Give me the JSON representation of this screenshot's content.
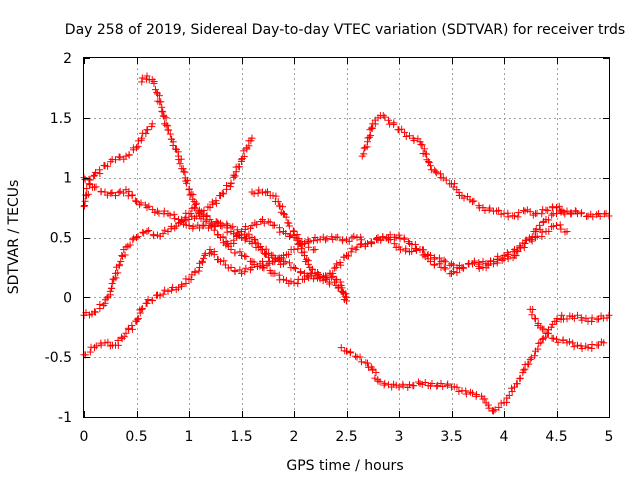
{
  "chart_data": {
    "type": "scatter",
    "title": "Day 258 of 2019, Sidereal Day-to-day VTEC variation (SDTVAR) for receiver trds",
    "xlabel": "GPS time / hours",
    "ylabel": "SDTVAR / TECUs",
    "xlim": [
      0,
      5
    ],
    "ylim": [
      -1,
      2
    ],
    "x_ticks": [
      "0",
      "0.5",
      "1",
      "1.5",
      "2",
      "2.5",
      "3",
      "3.5",
      "4",
      "4.5",
      "5"
    ],
    "y_ticks": [
      "2",
      "1.5",
      "1",
      "0.5",
      "0",
      "-0.5",
      "-1"
    ],
    "grid": true,
    "marker": "plus",
    "marker_color": "#ff0000",
    "series": [
      {
        "points": [
          [
            0.0,
            0.76
          ],
          [
            0.05,
            0.95
          ],
          [
            0.1,
            1.02
          ],
          [
            0.2,
            1.1
          ],
          [
            0.3,
            1.15
          ],
          [
            0.4,
            1.18
          ],
          [
            0.5,
            1.25
          ],
          [
            0.55,
            1.33
          ],
          [
            0.6,
            1.4
          ],
          [
            0.65,
            1.45
          ]
        ]
      },
      {
        "points": [
          [
            0.0,
            -0.15
          ],
          [
            0.1,
            -0.12
          ],
          [
            0.2,
            -0.05
          ],
          [
            0.25,
            0.05
          ],
          [
            0.3,
            0.2
          ],
          [
            0.35,
            0.3
          ],
          [
            0.4,
            0.42
          ],
          [
            0.5,
            0.5
          ],
          [
            0.6,
            0.55
          ],
          [
            0.7,
            0.52
          ],
          [
            0.8,
            0.55
          ],
          [
            0.9,
            0.62
          ],
          [
            1.0,
            0.7
          ],
          [
            1.05,
            0.75
          ],
          [
            1.1,
            0.68
          ],
          [
            1.2,
            0.62
          ],
          [
            1.3,
            0.5
          ],
          [
            1.4,
            0.4
          ],
          [
            1.5,
            0.35
          ],
          [
            1.6,
            0.3
          ],
          [
            1.7,
            0.25
          ],
          [
            1.8,
            0.3
          ],
          [
            1.9,
            0.35
          ],
          [
            2.0,
            0.4
          ],
          [
            2.1,
            0.45
          ],
          [
            2.2,
            0.5
          ],
          [
            2.3,
            0.48
          ],
          [
            2.4,
            0.5
          ],
          [
            2.5,
            0.48
          ],
          [
            2.6,
            0.5
          ],
          [
            2.7,
            0.45
          ],
          [
            2.8,
            0.48
          ],
          [
            2.9,
            0.5
          ],
          [
            3.0,
            0.52
          ],
          [
            3.1,
            0.45
          ],
          [
            3.2,
            0.4
          ],
          [
            3.3,
            0.35
          ],
          [
            3.4,
            0.3
          ],
          [
            3.5,
            0.28
          ],
          [
            3.6,
            0.25
          ],
          [
            3.7,
            0.28
          ],
          [
            3.8,
            0.25
          ],
          [
            3.9,
            0.3
          ],
          [
            4.0,
            0.35
          ],
          [
            4.1,
            0.4
          ],
          [
            4.2,
            0.45
          ],
          [
            4.3,
            0.5
          ],
          [
            4.4,
            0.55
          ],
          [
            4.5,
            0.6
          ],
          [
            4.6,
            0.55
          ]
        ]
      },
      {
        "points": [
          [
            0.0,
            1.0
          ],
          [
            0.1,
            0.92
          ],
          [
            0.2,
            0.88
          ],
          [
            0.3,
            0.85
          ],
          [
            0.4,
            0.9
          ],
          [
            0.5,
            0.8
          ],
          [
            0.6,
            0.75
          ],
          [
            0.7,
            0.72
          ],
          [
            0.8,
            0.7
          ],
          [
            0.9,
            0.65
          ],
          [
            1.0,
            0.6
          ],
          [
            1.1,
            0.58
          ],
          [
            1.2,
            0.6
          ],
          [
            1.3,
            0.62
          ],
          [
            1.4,
            0.58
          ],
          [
            1.5,
            0.55
          ],
          [
            1.6,
            0.5
          ],
          [
            1.7,
            0.4
          ],
          [
            1.8,
            0.35
          ],
          [
            1.9,
            0.3
          ],
          [
            2.0,
            0.25
          ],
          [
            2.1,
            0.2
          ],
          [
            2.2,
            0.18
          ],
          [
            2.3,
            0.15
          ],
          [
            2.4,
            0.1
          ],
          [
            2.45,
            0.05
          ],
          [
            2.5,
            0.0
          ]
        ]
      },
      {
        "points": [
          [
            0.0,
            -0.48
          ],
          [
            0.1,
            -0.42
          ],
          [
            0.2,
            -0.38
          ],
          [
            0.3,
            -0.4
          ],
          [
            0.4,
            -0.3
          ],
          [
            0.5,
            -0.2
          ],
          [
            0.55,
            -0.1
          ],
          [
            0.6,
            -0.05
          ],
          [
            0.7,
            0.02
          ],
          [
            0.8,
            0.05
          ],
          [
            0.9,
            0.08
          ],
          [
            1.0,
            0.15
          ],
          [
            1.1,
            0.25
          ],
          [
            1.15,
            0.35
          ],
          [
            1.2,
            0.4
          ],
          [
            1.3,
            0.3
          ],
          [
            1.4,
            0.25
          ],
          [
            1.5,
            0.2
          ],
          [
            1.6,
            0.25
          ],
          [
            1.7,
            0.3
          ],
          [
            1.8,
            0.2
          ],
          [
            1.9,
            0.15
          ],
          [
            2.0,
            0.12
          ],
          [
            2.1,
            0.15
          ],
          [
            2.2,
            0.18
          ],
          [
            2.3,
            0.15
          ],
          [
            2.4,
            0.25
          ],
          [
            2.5,
            0.35
          ],
          [
            2.6,
            0.42
          ],
          [
            2.7,
            0.45
          ],
          [
            2.8,
            0.5
          ],
          [
            2.9,
            0.48
          ],
          [
            3.0,
            0.42
          ],
          [
            3.1,
            0.38
          ],
          [
            3.2,
            0.4
          ],
          [
            3.3,
            0.3
          ],
          [
            3.4,
            0.25
          ],
          [
            3.5,
            0.2
          ],
          [
            3.6,
            0.25
          ],
          [
            3.7,
            0.28
          ],
          [
            3.8,
            0.3
          ],
          [
            3.9,
            0.28
          ],
          [
            4.0,
            0.32
          ],
          [
            4.1,
            0.35
          ],
          [
            4.2,
            0.45
          ],
          [
            4.3,
            0.55
          ],
          [
            4.4,
            0.65
          ],
          [
            4.5,
            0.7
          ],
          [
            4.6,
            0.72
          ],
          [
            4.7,
            0.7
          ]
        ]
      },
      {
        "points": [
          [
            0.55,
            1.8
          ],
          [
            0.6,
            1.85
          ],
          [
            0.65,
            1.82
          ],
          [
            0.7,
            1.7
          ],
          [
            0.75,
            1.55
          ],
          [
            0.8,
            1.4
          ],
          [
            0.85,
            1.3
          ],
          [
            0.9,
            1.18
          ],
          [
            0.95,
            1.05
          ],
          [
            1.0,
            0.9
          ],
          [
            1.05,
            0.8
          ],
          [
            1.1,
            0.72
          ],
          [
            1.2,
            0.65
          ],
          [
            1.3,
            0.6
          ],
          [
            1.4,
            0.55
          ],
          [
            1.5,
            0.5
          ],
          [
            1.6,
            0.45
          ],
          [
            1.7,
            0.4
          ],
          [
            1.8,
            0.3
          ],
          [
            1.9,
            0.28
          ]
        ]
      },
      {
        "points": [
          [
            0.9,
            0.62
          ],
          [
            1.0,
            0.65
          ],
          [
            1.1,
            0.7
          ],
          [
            1.2,
            0.75
          ],
          [
            1.3,
            0.85
          ],
          [
            1.4,
            0.95
          ],
          [
            1.45,
            1.05
          ],
          [
            1.5,
            1.15
          ],
          [
            1.55,
            1.25
          ],
          [
            1.6,
            1.33
          ]
        ]
      },
      {
        "points": [
          [
            1.6,
            0.88
          ],
          [
            1.7,
            0.88
          ],
          [
            1.8,
            0.85
          ],
          [
            1.85,
            0.8
          ],
          [
            1.9,
            0.7
          ],
          [
            1.95,
            0.62
          ],
          [
            2.0,
            0.55
          ],
          [
            2.05,
            0.45
          ],
          [
            2.1,
            0.35
          ],
          [
            2.15,
            0.25
          ],
          [
            2.2,
            0.2
          ],
          [
            2.3,
            0.18
          ],
          [
            2.4,
            0.15
          ],
          [
            2.45,
            0.1
          ],
          [
            2.5,
            -0.03
          ]
        ]
      },
      {
        "points": [
          [
            1.3,
            0.5
          ],
          [
            1.4,
            0.45
          ],
          [
            1.5,
            0.55
          ],
          [
            1.6,
            0.6
          ],
          [
            1.7,
            0.65
          ],
          [
            1.8,
            0.6
          ],
          [
            1.9,
            0.55
          ],
          [
            2.0,
            0.5
          ],
          [
            2.1,
            0.45
          ],
          [
            2.2,
            0.4
          ]
        ]
      },
      {
        "points": [
          [
            2.65,
            1.18
          ],
          [
            2.7,
            1.3
          ],
          [
            2.75,
            1.45
          ],
          [
            2.8,
            1.5
          ],
          [
            2.85,
            1.52
          ],
          [
            2.9,
            1.48
          ],
          [
            3.0,
            1.4
          ],
          [
            3.1,
            1.35
          ],
          [
            3.2,
            1.3
          ],
          [
            3.25,
            1.2
          ],
          [
            3.3,
            1.1
          ],
          [
            3.35,
            1.05
          ],
          [
            3.4,
            1.0
          ],
          [
            3.45,
            0.98
          ],
          [
            3.5,
            0.95
          ],
          [
            3.55,
            0.9
          ],
          [
            3.6,
            0.85
          ],
          [
            3.7,
            0.8
          ],
          [
            3.8,
            0.75
          ],
          [
            3.9,
            0.72
          ],
          [
            4.0,
            0.7
          ],
          [
            4.1,
            0.68
          ],
          [
            4.2,
            0.72
          ],
          [
            4.3,
            0.7
          ],
          [
            4.4,
            0.73
          ],
          [
            4.5,
            0.75
          ],
          [
            4.6,
            0.72
          ],
          [
            4.7,
            0.7
          ],
          [
            4.8,
            0.68
          ],
          [
            4.9,
            0.7
          ],
          [
            5.0,
            0.68
          ]
        ]
      },
      {
        "points": [
          [
            2.45,
            -0.42
          ],
          [
            2.5,
            -0.45
          ],
          [
            2.6,
            -0.5
          ],
          [
            2.7,
            -0.55
          ],
          [
            2.75,
            -0.6
          ],
          [
            2.8,
            -0.7
          ],
          [
            2.9,
            -0.73
          ],
          [
            3.0,
            -0.75
          ],
          [
            3.1,
            -0.73
          ],
          [
            3.2,
            -0.72
          ],
          [
            3.3,
            -0.74
          ],
          [
            3.4,
            -0.72
          ],
          [
            3.5,
            -0.75
          ],
          [
            3.6,
            -0.78
          ],
          [
            3.7,
            -0.8
          ],
          [
            3.8,
            -0.85
          ],
          [
            3.85,
            -0.9
          ],
          [
            3.9,
            -0.95
          ],
          [
            3.95,
            -0.92
          ],
          [
            4.0,
            -0.88
          ],
          [
            4.05,
            -0.82
          ],
          [
            4.1,
            -0.75
          ],
          [
            4.15,
            -0.68
          ],
          [
            4.2,
            -0.6
          ],
          [
            4.25,
            -0.52
          ],
          [
            4.3,
            -0.45
          ],
          [
            4.35,
            -0.38
          ],
          [
            4.4,
            -0.3
          ],
          [
            4.45,
            -0.25
          ],
          [
            4.5,
            -0.2
          ],
          [
            4.55,
            -0.15
          ],
          [
            4.6,
            -0.18
          ],
          [
            4.7,
            -0.15
          ],
          [
            4.8,
            -0.2
          ],
          [
            4.9,
            -0.18
          ],
          [
            5.0,
            -0.15
          ]
        ]
      },
      {
        "points": [
          [
            4.25,
            -0.1
          ],
          [
            4.3,
            -0.18
          ],
          [
            4.35,
            -0.25
          ],
          [
            4.4,
            -0.3
          ],
          [
            4.5,
            -0.35
          ],
          [
            4.6,
            -0.38
          ],
          [
            4.7,
            -0.4
          ],
          [
            4.8,
            -0.42
          ],
          [
            4.9,
            -0.4
          ],
          [
            4.95,
            -0.38
          ]
        ]
      }
    ]
  }
}
